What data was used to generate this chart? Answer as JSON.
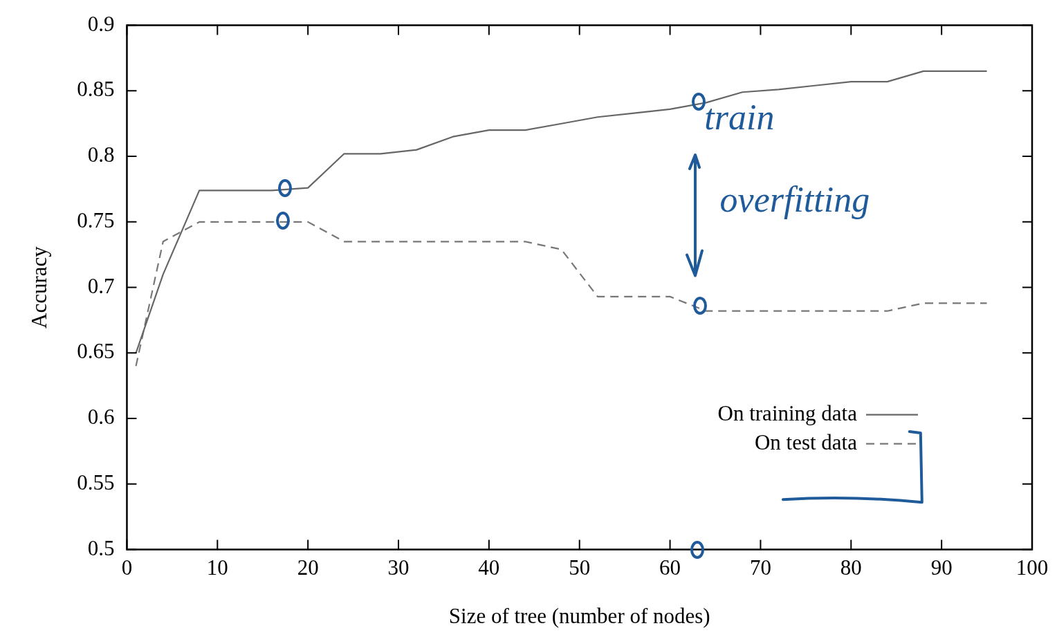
{
  "chart_data": {
    "type": "line",
    "xlabel": "Size of tree (number of nodes)",
    "ylabel": "Accuracy",
    "xlim": [
      0,
      100
    ],
    "xticks": [
      0,
      10,
      20,
      30,
      40,
      50,
      60,
      70,
      80,
      90,
      100
    ],
    "ylim": [
      0.5,
      0.9
    ],
    "yticks": [
      0.5,
      0.55,
      0.6,
      0.65,
      0.7,
      0.75,
      0.8,
      0.85,
      0.9
    ],
    "grid": false,
    "legend": "bottom right",
    "marker": "none",
    "annotations": [
      "train",
      "overfitting"
    ],
    "series": [
      {
        "name": "On training data",
        "color": "#666666",
        "line_style": "solid",
        "x": [
          1,
          4,
          8,
          12,
          16,
          20,
          24,
          28,
          32,
          36,
          40,
          44,
          48,
          52,
          56,
          60,
          64,
          68,
          72,
          76,
          80,
          84,
          88,
          92,
          95
        ],
        "values": [
          0.65,
          0.71,
          0.774,
          0.774,
          0.774,
          0.776,
          0.802,
          0.802,
          0.805,
          0.815,
          0.82,
          0.82,
          0.825,
          0.83,
          0.833,
          0.836,
          0.841,
          0.849,
          0.851,
          0.854,
          0.857,
          0.857,
          0.865,
          0.865,
          0.865
        ]
      },
      {
        "name": "On test data",
        "color": "#777777",
        "line_style": "dashed",
        "x": [
          1,
          4,
          8,
          12,
          16,
          20,
          24,
          28,
          32,
          36,
          40,
          44,
          48,
          52,
          56,
          60,
          64,
          68,
          72,
          76,
          80,
          84,
          88,
          92,
          95
        ],
        "values": [
          0.64,
          0.735,
          0.75,
          0.75,
          0.75,
          0.75,
          0.735,
          0.735,
          0.735,
          0.735,
          0.735,
          0.735,
          0.729,
          0.693,
          0.693,
          0.693,
          0.682,
          0.682,
          0.682,
          0.682,
          0.682,
          0.682,
          0.688,
          0.688,
          0.688
        ]
      }
    ]
  }
}
